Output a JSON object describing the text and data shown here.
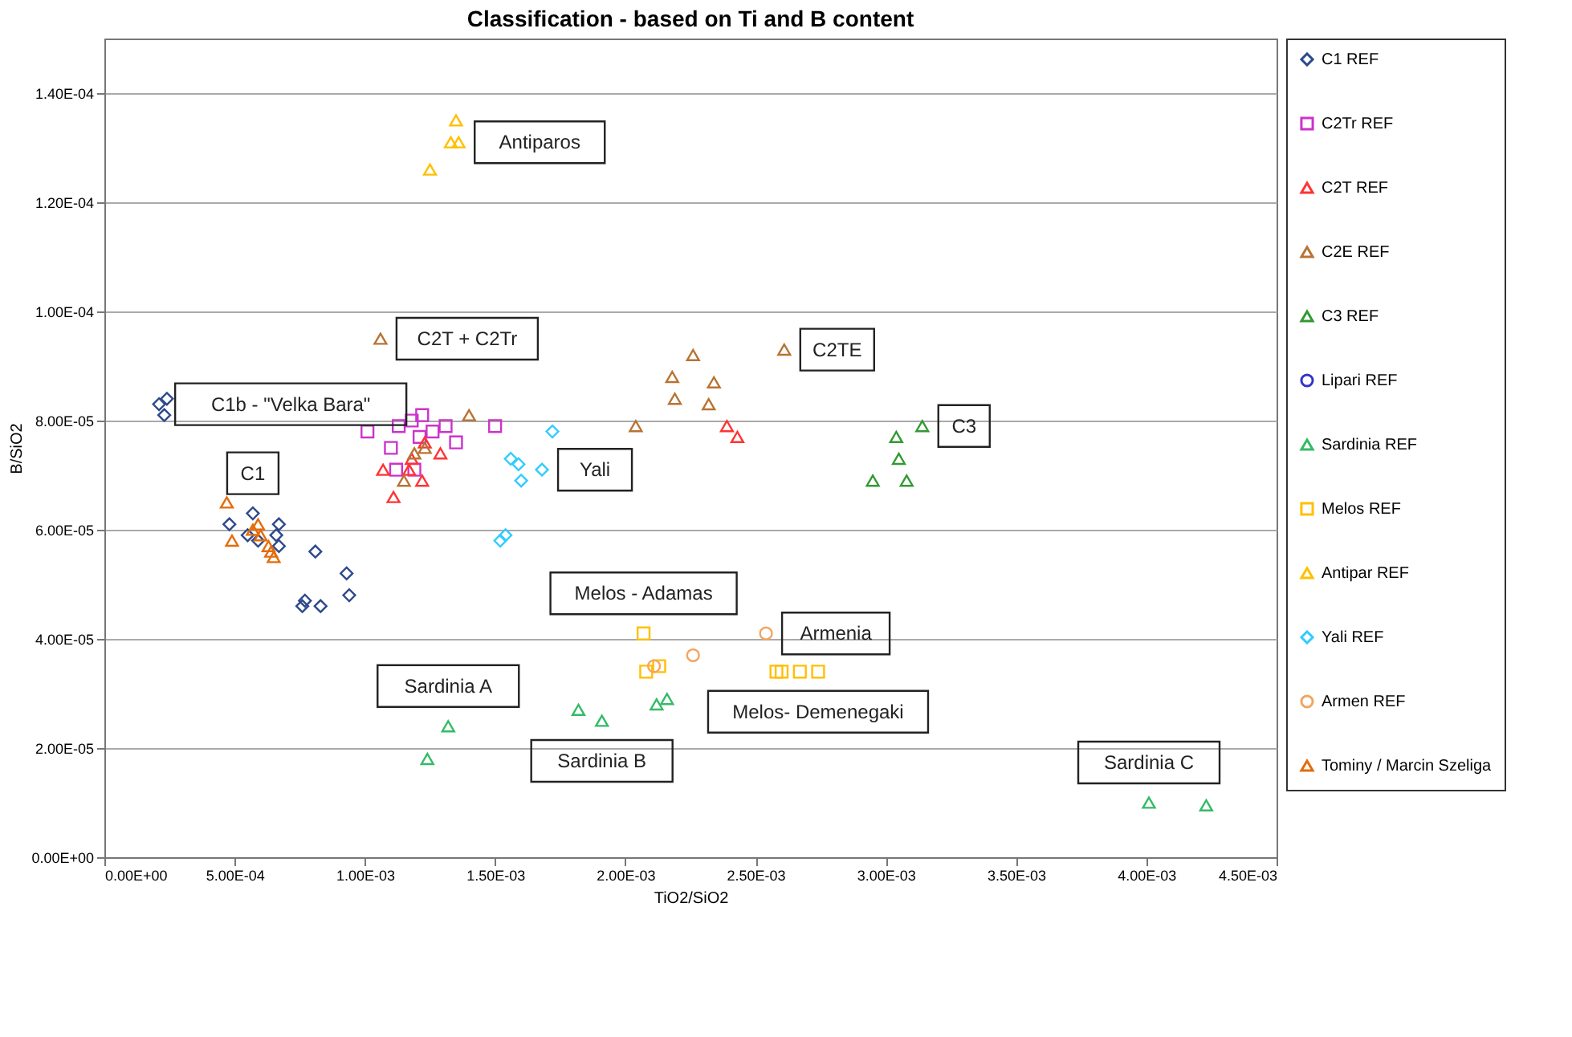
{
  "chart_data": {
    "type": "scatter",
    "title": "Classification - based on Ti and B content",
    "xlabel": "TiO2/SiO2",
    "ylabel": "B/SiO2",
    "xlim": [
      0,
      0.0045
    ],
    "ylim": [
      0,
      0.00015
    ],
    "xticks": [
      {
        "value": 0,
        "label": "0.00E+00"
      },
      {
        "value": 0.0005,
        "label": "5.00E-04"
      },
      {
        "value": 0.001,
        "label": "1.00E-03"
      },
      {
        "value": 0.0015,
        "label": "1.50E-03"
      },
      {
        "value": 0.002,
        "label": "2.00E-03"
      },
      {
        "value": 0.0025,
        "label": "2.50E-03"
      },
      {
        "value": 0.003,
        "label": "3.00E-03"
      },
      {
        "value": 0.0035,
        "label": "3.50E-03"
      },
      {
        "value": 0.004,
        "label": "4.00E-03"
      },
      {
        "value": 0.0045,
        "label": "4.50E-03"
      }
    ],
    "yticks": [
      {
        "value": 0,
        "label": "0.00E+00"
      },
      {
        "value": 2e-05,
        "label": "2.00E-05"
      },
      {
        "value": 4e-05,
        "label": "4.00E-05"
      },
      {
        "value": 6e-05,
        "label": "6.00E-05"
      },
      {
        "value": 8e-05,
        "label": "8.00E-05"
      },
      {
        "value": 0.0001,
        "label": "1.00E-04"
      },
      {
        "value": 0.00012,
        "label": "1.20E-04"
      },
      {
        "value": 0.00014,
        "label": "1.40E-04"
      }
    ],
    "grid": "y",
    "legend": "right",
    "series": [
      {
        "name": "C1 REF",
        "color": "#2e4a8c",
        "marker": "diamond",
        "x": [
          0.00024,
          0.00021,
          0.00023,
          0.00048,
          0.00057,
          0.00055,
          0.00067,
          0.00066,
          0.00067,
          0.00059,
          0.00081,
          0.00093,
          0.00094,
          0.00083,
          0.00076,
          0.00077
        ],
        "values": [
          8.4e-05,
          8.3e-05,
          8.1e-05,
          6.1e-05,
          6.3e-05,
          5.9e-05,
          6.1e-05,
          5.9e-05,
          5.7e-05,
          5.8e-05,
          5.6e-05,
          5.2e-05,
          4.8e-05,
          4.6e-05,
          4.6e-05,
          4.7e-05
        ]
      },
      {
        "name": "C2Tr REF",
        "color": "#cc33cc",
        "marker": "square",
        "x": [
          0.00101,
          0.00113,
          0.00118,
          0.00122,
          0.00131,
          0.0015,
          0.00135,
          0.0011,
          0.00112,
          0.00119,
          0.00126,
          0.00121
        ],
        "values": [
          7.8e-05,
          7.9e-05,
          8e-05,
          8.1e-05,
          7.9e-05,
          7.9e-05,
          7.6e-05,
          7.5e-05,
          7.1e-05,
          7.1e-05,
          7.8e-05,
          7.7e-05
        ]
      },
      {
        "name": "C2T REF",
        "color": "#ff3333",
        "marker": "triangle",
        "x": [
          0.00107,
          0.00111,
          0.00122,
          0.00118,
          0.00123,
          0.00129,
          0.00117,
          0.00239,
          0.00243
        ],
        "values": [
          7.1e-05,
          6.6e-05,
          6.9e-05,
          7.3e-05,
          7.6e-05,
          7.4e-05,
          7.1e-05,
          7.9e-05,
          7.7e-05
        ]
      },
      {
        "name": "C2E REF",
        "color": "#b87333",
        "marker": "triangle",
        "x": [
          0.00106,
          0.0014,
          0.00119,
          0.00123,
          0.00115,
          0.00226,
          0.00218,
          0.00234,
          0.00219,
          0.00232,
          0.00261,
          0.00204
        ],
        "values": [
          9.5e-05,
          8.1e-05,
          7.4e-05,
          7.5e-05,
          6.9e-05,
          9.2e-05,
          8.8e-05,
          8.7e-05,
          8.4e-05,
          8.3e-05,
          9.3e-05,
          7.9e-05
        ]
      },
      {
        "name": "C3 REF",
        "color": "#339933",
        "marker": "triangle",
        "x": [
          0.00314,
          0.00304,
          0.00305,
          0.00308,
          0.00295
        ],
        "values": [
          7.9e-05,
          7.7e-05,
          7.3e-05,
          6.9e-05,
          6.9e-05
        ]
      },
      {
        "name": "Lipari REF",
        "color": "#3333cc",
        "marker": "circle"
      },
      {
        "name": "Sardinia REF",
        "color": "#33bb66",
        "marker": "triangle",
        "x": [
          0.00132,
          0.00124,
          0.00182,
          0.00191,
          0.00212,
          0.00216,
          0.00401,
          0.00423
        ],
        "values": [
          2.4e-05,
          1.8e-05,
          2.7e-05,
          2.5e-05,
          2.8e-05,
          2.9e-05,
          1e-05,
          9.5e-06
        ]
      },
      {
        "name": "Melos REF",
        "color": "#ffc000",
        "marker": "square",
        "x": [
          0.00207,
          0.00208,
          0.00213,
          0.00258,
          0.0026,
          0.00267,
          0.00274
        ],
        "values": [
          4.1e-05,
          3.4e-05,
          3.5e-05,
          3.4e-05,
          3.4e-05,
          3.4e-05,
          3.4e-05
        ]
      },
      {
        "name": "Antipar REF",
        "color": "#ffc000",
        "marker": "triangle",
        "x": [
          0.00135,
          0.00133,
          0.00136,
          0.00125
        ],
        "values": [
          0.000135,
          0.000131,
          0.000131,
          0.000126
        ]
      },
      {
        "name": "Yali REF",
        "color": "#33ccff",
        "marker": "diamond",
        "x": [
          0.00172,
          0.00156,
          0.00159,
          0.0016,
          0.00168,
          0.00152,
          0.00154
        ],
        "values": [
          7.8e-05,
          7.3e-05,
          7.2e-05,
          6.9e-05,
          7.1e-05,
          5.8e-05,
          5.9e-05
        ]
      },
      {
        "name": "Armen REF",
        "color": "#f4a460",
        "marker": "circle",
        "x": [
          0.00254,
          0.00226,
          0.00211
        ],
        "values": [
          4.1e-05,
          3.7e-05,
          3.5e-05
        ]
      },
      {
        "name": "Tominy / Marcin Szeliga",
        "color": "#e46c0a",
        "marker": "triangle",
        "x": [
          0.00047,
          0.00049,
          0.00057,
          0.00059,
          0.0006,
          0.00063,
          0.00065,
          0.00064
        ],
        "values": [
          6.5e-05,
          5.8e-05,
          6e-05,
          6.1e-05,
          5.9e-05,
          5.7e-05,
          5.5e-05,
          5.6e-05
        ]
      }
    ],
    "annotations": [
      {
        "text": "Antiparos",
        "x": 0.00136,
        "y": 0.000131
      },
      {
        "text": "C1b - \"Velka Bara\"",
        "x": 0.00021,
        "y": 8.3e-05
      },
      {
        "text": "C2T + C2Tr",
        "x": 0.00106,
        "y": 9.5e-05
      },
      {
        "text": "C2TE",
        "x": 0.00261,
        "y": 9.3e-05
      },
      {
        "text": "C1",
        "x": 0.00057,
        "y": 6.3e-05
      },
      {
        "text": "C3",
        "x": 0.00314,
        "y": 7.9e-05
      },
      {
        "text": "Yali",
        "x": 0.00168,
        "y": 7.1e-05
      },
      {
        "text": "Melos - Adamas",
        "x": 0.00207,
        "y": 4.1e-05
      },
      {
        "text": "Armenia",
        "x": 0.00254,
        "y": 4.1e-05
      },
      {
        "text": "Sardinia A",
        "x": 0.00132,
        "y": 2.4e-05
      },
      {
        "text": "Melos- Demenegaki",
        "x": 0.00274,
        "y": 3.4e-05
      },
      {
        "text": "Sardinia B",
        "x": 0.00191,
        "y": 2.5e-05
      },
      {
        "text": "Sardinia C",
        "x": 0.00401,
        "y": 1e-05
      }
    ]
  }
}
